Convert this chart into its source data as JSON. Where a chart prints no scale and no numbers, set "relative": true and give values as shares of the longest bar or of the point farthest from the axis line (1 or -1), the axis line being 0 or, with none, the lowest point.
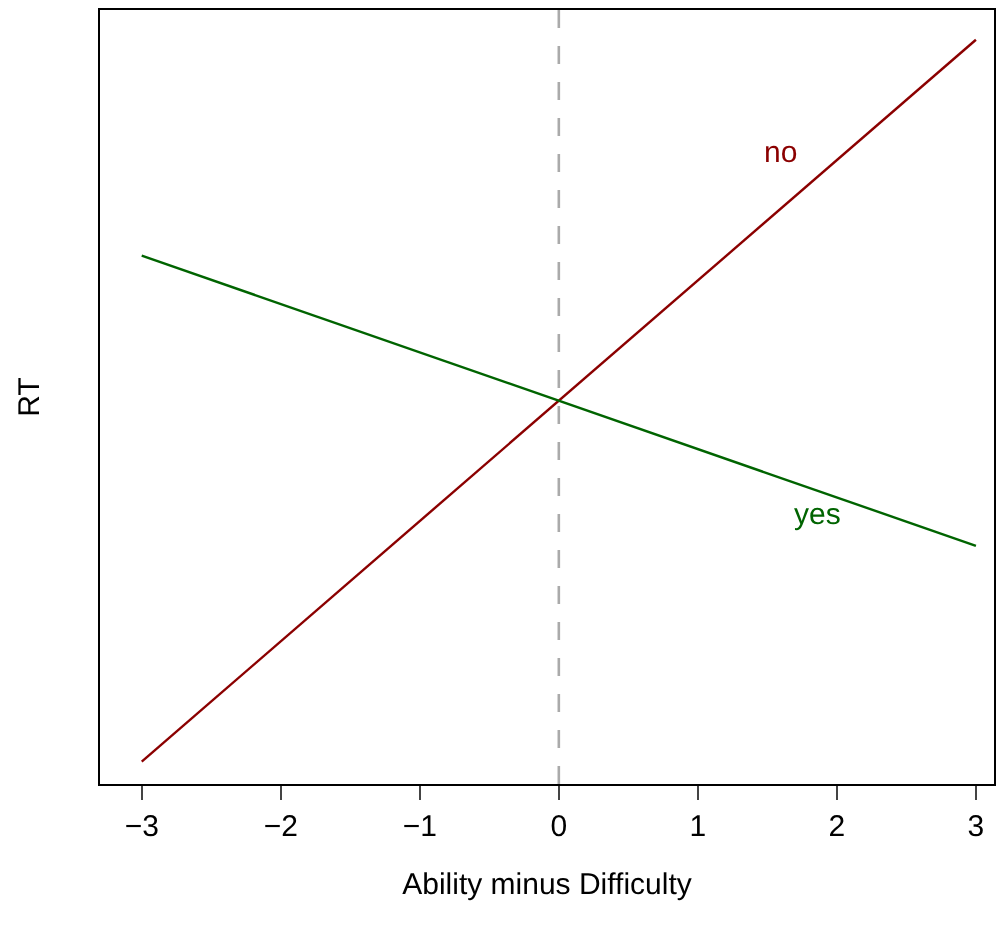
{
  "chart_data": {
    "type": "line",
    "relative": true,
    "xlabel": "Ability minus Difficulty",
    "ylabel": "RT",
    "x": [
      -3,
      3
    ],
    "xlim": [
      -3.3,
      3.13
    ],
    "xticks": [
      {
        "value": -3,
        "label": "−3"
      },
      {
        "value": -2,
        "label": "−2"
      },
      {
        "value": -1,
        "label": "−1"
      },
      0,
      1,
      2,
      3
    ],
    "series": [
      {
        "name": "no",
        "color": "#8b0000",
        "values": [
          0.03,
          1
        ]
      },
      {
        "name": "yes",
        "color": "#006400",
        "values": [
          0.71,
          0.32
        ]
      }
    ],
    "ref_lines": [
      {
        "axis": "x",
        "value": 0,
        "color": "#aaaaaa",
        "line_style": "dashed"
      }
    ],
    "legend": false,
    "marker": "none",
    "line_style": "solid",
    "tick_labels": "x"
  }
}
